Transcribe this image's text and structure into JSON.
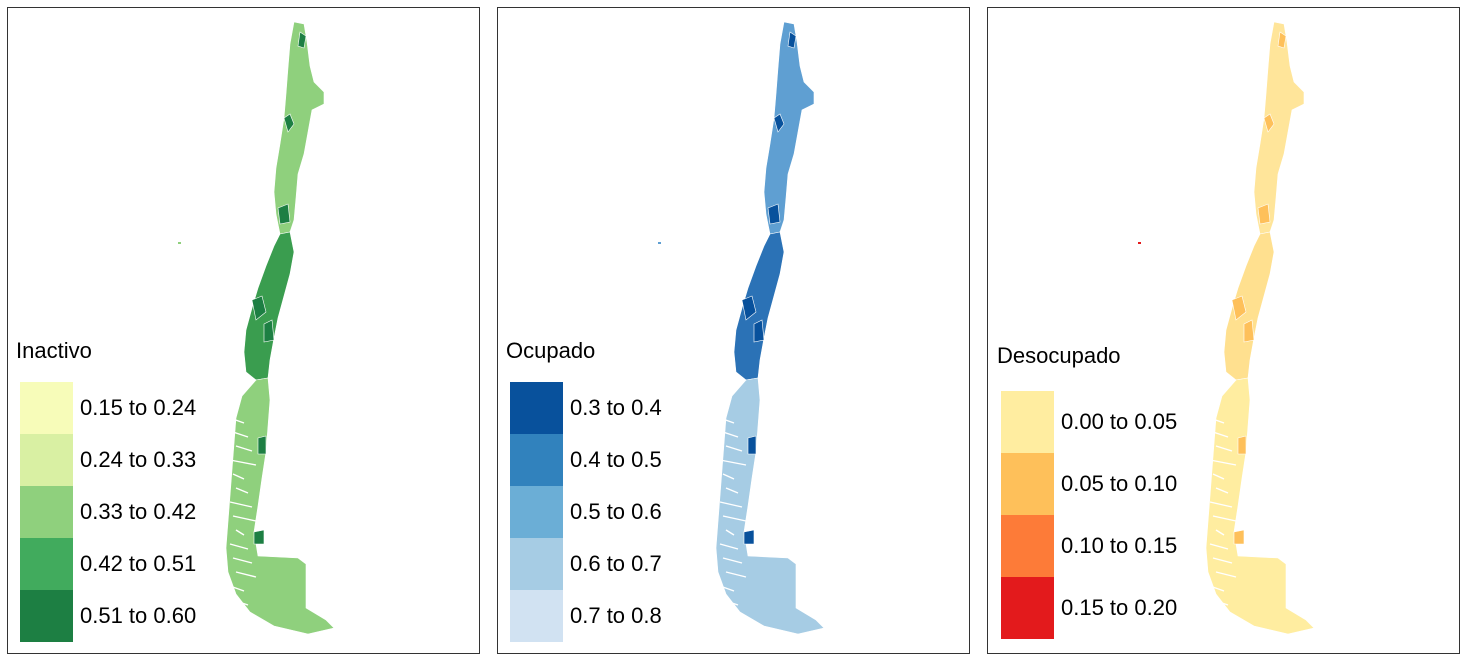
{
  "panels": [
    {
      "title": "Inactivo",
      "legend": [
        {
          "label": "0.15 to 0.24",
          "color": "#f7fcb9"
        },
        {
          "label": "0.24 to 0.33",
          "color": "#d9f0a3"
        },
        {
          "label": "0.33 to 0.42",
          "color": "#8fd07d"
        },
        {
          "label": "0.42 to 0.51",
          "color": "#41ab5d"
        },
        {
          "label": "0.51 to 0.60",
          "color": "#1d7f43"
        }
      ],
      "map_colors": {
        "north": "#8fd07d",
        "central": "#3a9d4f",
        "south": "#8fd07d",
        "detail": "#1d7f43"
      }
    },
    {
      "title": "Ocupado",
      "legend": [
        {
          "label": "0.3 to 0.4",
          "color": "#08519c"
        },
        {
          "label": "0.4 to 0.5",
          "color": "#3182bd"
        },
        {
          "label": "0.5 to 0.6",
          "color": "#6baed6"
        },
        {
          "label": "0.6 to 0.7",
          "color": "#a6cce4"
        },
        {
          "label": "0.7 to 0.8",
          "color": "#d1e2f2"
        }
      ],
      "map_colors": {
        "north": "#5f9fd2",
        "central": "#2b72b6",
        "south": "#a6cce4",
        "detail": "#08519c"
      }
    },
    {
      "title": "Desocupado",
      "legend": [
        {
          "label": "0.00 to 0.05",
          "color": "#ffeda0"
        },
        {
          "label": "0.05 to 0.10",
          "color": "#fec05a"
        },
        {
          "label": "0.10 to 0.15",
          "color": "#fd7b38"
        },
        {
          "label": "0.15 to 0.20",
          "color": "#e31a1c"
        }
      ],
      "map_colors": {
        "north": "#ffe59a",
        "central": "#ffe08f",
        "south": "#ffeda0",
        "detail": "#fec05a"
      }
    }
  ]
}
